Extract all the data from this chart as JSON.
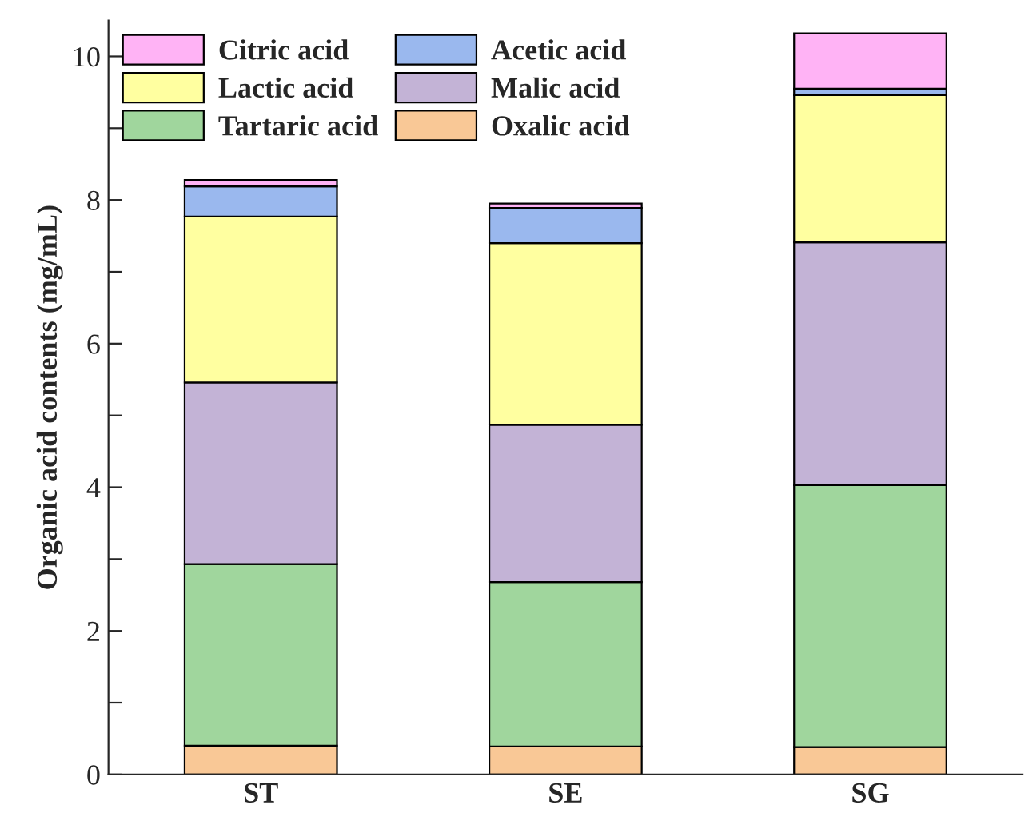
{
  "chart_data": {
    "type": "bar",
    "stacked": true,
    "ylabel": "Organic acid contents (mg/mL)",
    "categories": [
      "ST",
      "SE",
      "SG"
    ],
    "series": [
      {
        "name": "Oxalic acid",
        "color": "#f9c896",
        "values": [
          0.4,
          0.39,
          0.38
        ]
      },
      {
        "name": "Tartaric acid",
        "color": "#a0d69d",
        "values": [
          2.53,
          2.29,
          3.65
        ]
      },
      {
        "name": "Malic acid",
        "color": "#c3b3d6",
        "values": [
          2.53,
          2.19,
          3.38
        ]
      },
      {
        "name": "Lactic acid",
        "color": "#ffffa0",
        "values": [
          2.31,
          2.53,
          2.05
        ]
      },
      {
        "name": "Acetic acid",
        "color": "#9ab8ee",
        "values": [
          0.42,
          0.49,
          0.09
        ]
      },
      {
        "name": "Citric acid",
        "color": "#ffb3f5",
        "values": [
          0.09,
          0.06,
          0.77
        ]
      }
    ],
    "ylim": [
      0,
      10.5
    ],
    "yticks": [
      0,
      {
        "value": 1,
        "label": null
      },
      2,
      {
        "value": 3,
        "label": null
      },
      4,
      {
        "value": 5,
        "label": null
      },
      6,
      {
        "value": 7,
        "label": null
      },
      8,
      {
        "value": 9,
        "label": null
      },
      10
    ],
    "legend": "top left",
    "grid": false
  }
}
